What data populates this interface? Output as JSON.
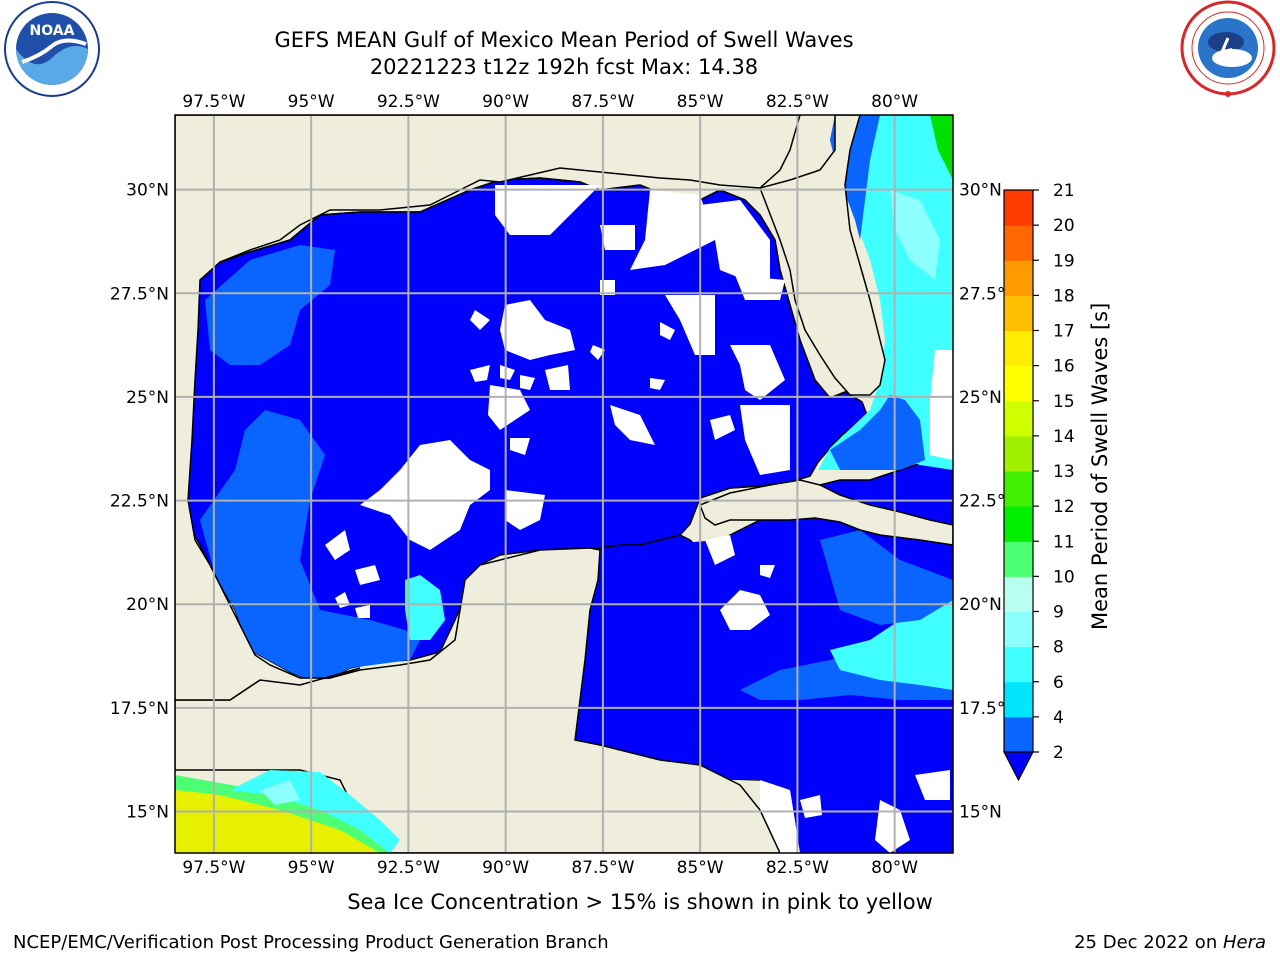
{
  "header": {
    "title_line1": "GEFS MEAN Gulf of Mexico Mean Period of Swell Waves",
    "title_line2": "20221223 t12z 192h fcst   Max: 14.38"
  },
  "logos": {
    "left": {
      "name": "noaa-logo",
      "text": "NOAA",
      "ring_text": "NATIONAL OCEANIC AND ATMOSPHERIC ADMINISTRATION · U.S. DEPARTMENT OF COMMERCE"
    },
    "right": {
      "name": "nws-logo",
      "ring_text": "NATIONAL WEATHER SERVICE"
    }
  },
  "chart_data": {
    "type": "heatmap",
    "title": "GEFS MEAN Gulf of Mexico Mean Period of Swell Waves",
    "xlim": [
      -98.5,
      -78.5
    ],
    "ylim": [
      14.0,
      31.8
    ],
    "x_ticks": [
      {
        "value": -97.5,
        "label": "97.5°W"
      },
      {
        "value": -95,
        "label": "95°W"
      },
      {
        "value": -92.5,
        "label": "92.5°W"
      },
      {
        "value": -90,
        "label": "90°W"
      },
      {
        "value": -87.5,
        "label": "87.5°W"
      },
      {
        "value": -85,
        "label": "85°W"
      },
      {
        "value": -82.5,
        "label": "82.5°W"
      },
      {
        "value": -80,
        "label": "80°W"
      }
    ],
    "y_ticks_left": [
      {
        "value": 30,
        "label": "30°N"
      },
      {
        "value": 27.5,
        "label": "27.5°N"
      },
      {
        "value": 25,
        "label": "25°N"
      },
      {
        "value": 22.5,
        "label": "22.5°N"
      },
      {
        "value": 20,
        "label": "20°N"
      },
      {
        "value": 17.5,
        "label": "17.5°N"
      },
      {
        "value": 15,
        "label": "15°N"
      }
    ],
    "y_ticks_right": [
      {
        "value": 30,
        "label": "30°N"
      },
      {
        "value": 27.5,
        "label": "27.5°"
      },
      {
        "value": 25,
        "label": "25°N"
      },
      {
        "value": 22.5,
        "label": "22.5°"
      },
      {
        "value": 20,
        "label": "20°N"
      },
      {
        "value": 17.5,
        "label": "17.5°"
      },
      {
        "value": 15,
        "label": "15°N"
      }
    ],
    "grid": true,
    "land_color": "#efeedc",
    "colorbar": {
      "label": "Mean Period of Swell Waves [s]",
      "levels": [
        2,
        4,
        6,
        8,
        9,
        10,
        11,
        12,
        13,
        14,
        15,
        16,
        17,
        18,
        19,
        20,
        21
      ],
      "colors": [
        "#0a64ff",
        "#00e6ff",
        "#40ffff",
        "#8cffff",
        "#b9fff0",
        "#4cff73",
        "#00f000",
        "#40f000",
        "#a0f000",
        "#d0ff00",
        "#ffff00",
        "#ffec00",
        "#ffbf00",
        "#ff9a00",
        "#ff6800",
        "#ff3a00",
        "#ff0000"
      ],
      "extend": "min",
      "under_color": "#0000ff",
      "tick_labels": [
        "2",
        "4",
        "6",
        "8",
        "9",
        "10",
        "11",
        "12",
        "13",
        "14",
        "15",
        "16",
        "17",
        "18",
        "19",
        "20",
        "21"
      ]
    },
    "max_value": 14.38
  },
  "footer": {
    "note": "Sea Ice Concentration > 15% is shown in pink to yellow",
    "left": "NCEP/EMC/Verification Post Processing Product Generation Branch",
    "right_prefix": "25 Dec 2022 on ",
    "right_host": "Hera"
  }
}
